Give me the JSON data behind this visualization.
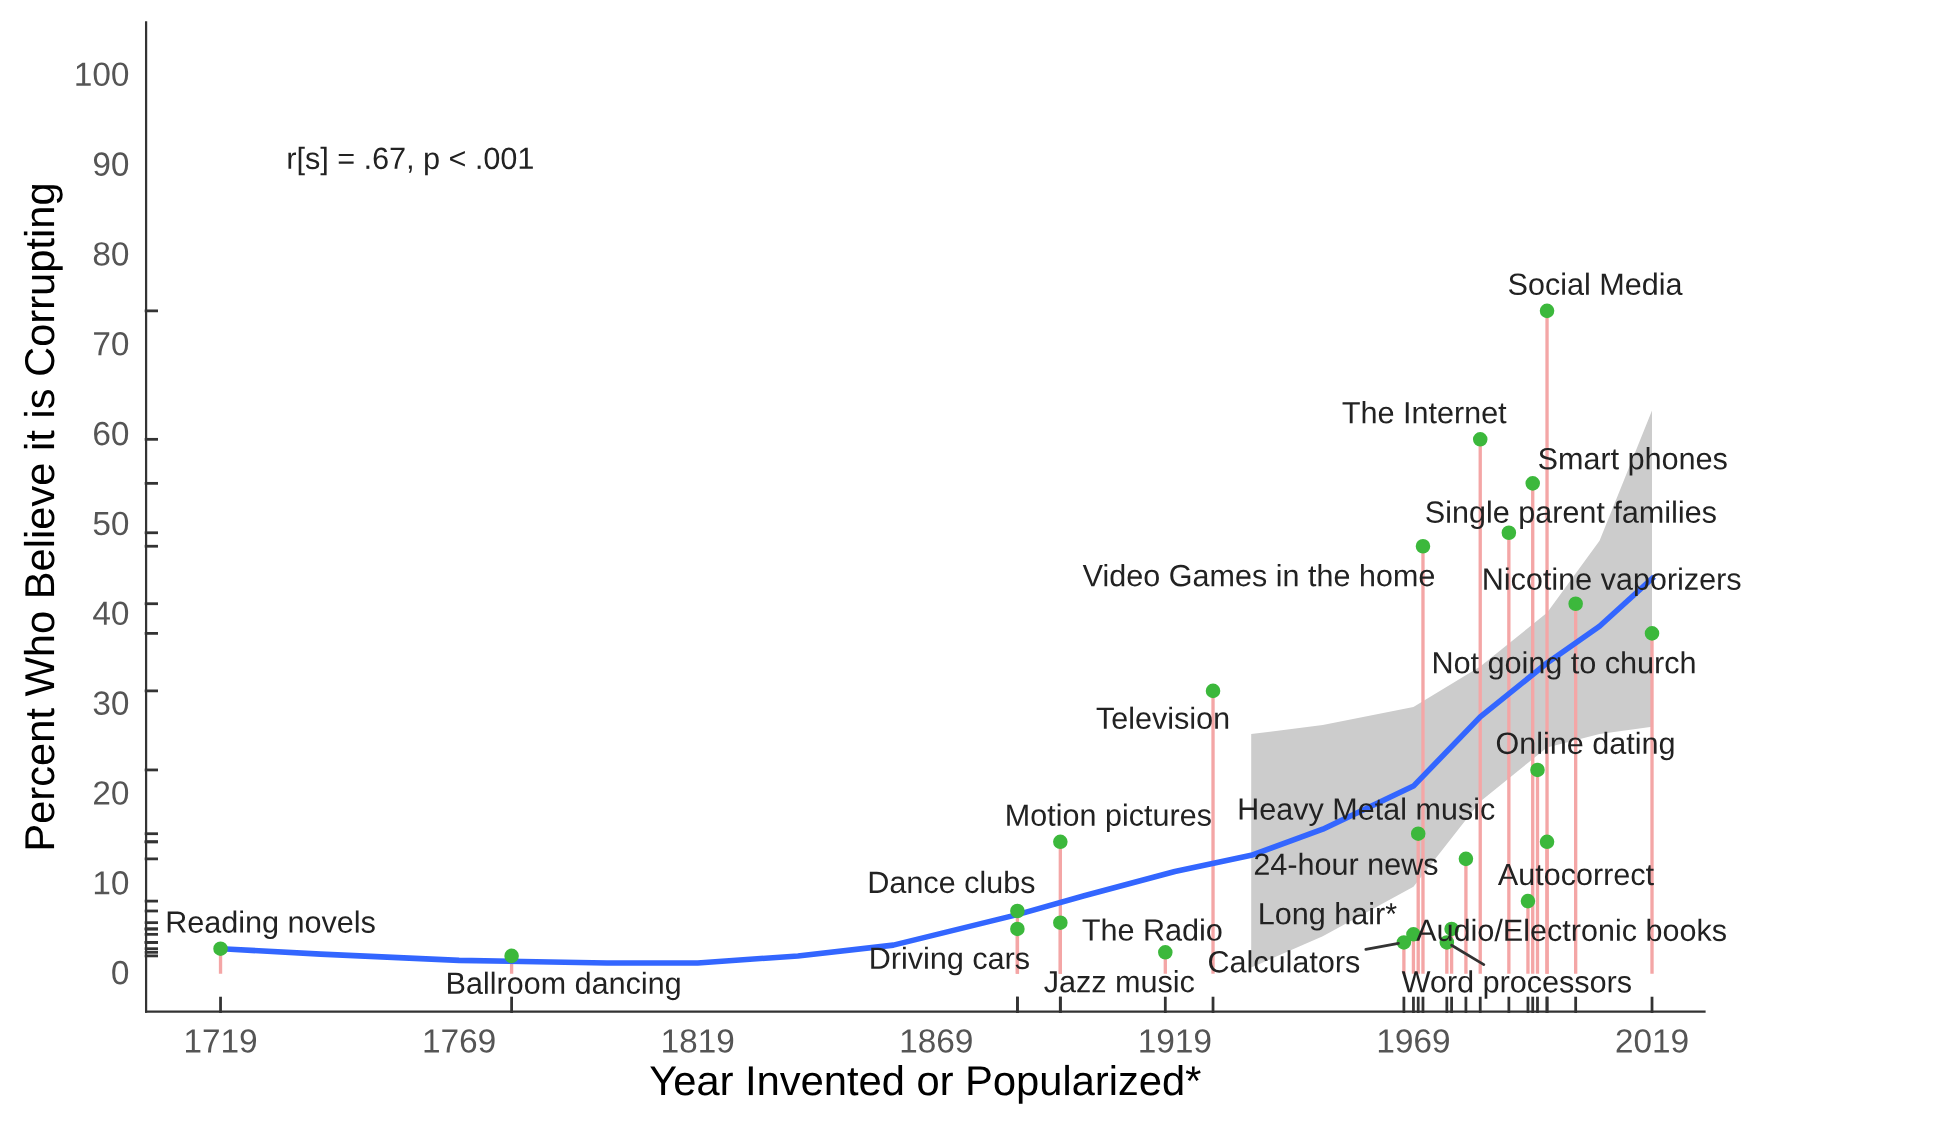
{
  "chart_data": {
    "type": "lollipop",
    "xlabel": "Year Invented or Popularized*",
    "ylabel": "Percent Who Believe it is Corrupting",
    "xlim": [
      1703.4,
      2030
    ],
    "ylim": [
      -4.4,
      105.7
    ],
    "xticks": [
      1719,
      1769,
      1819,
      1869,
      1919,
      1969,
      2019
    ],
    "yticks": [
      0,
      10,
      20,
      30,
      40,
      50,
      60,
      70,
      80,
      90,
      100
    ],
    "grid": false,
    "legend": false,
    "series": [
      {
        "marker": "circle",
        "color": "#3cb83c",
        "x": [
          1719,
          1780,
          1886,
          1886,
          1895,
          1895,
          1917,
          1927,
          1971,
          1970,
          1969,
          1967,
          1980,
          1977,
          1976,
          1983,
          1989,
          1994,
          1997,
          2003,
          2019,
          1995,
          1997,
          1993
        ],
        "values": [
          2.6,
          1.8,
          6.8,
          4.8,
          14.5,
          5.5,
          2.2,
          31.3,
          47.4,
          15.4,
          4.2,
          3.3,
          12.6,
          4.8,
          3.3,
          59.3,
          48.9,
          54.4,
          73.6,
          41.0,
          37.7,
          22.5,
          14.5,
          7.9
        ]
      },
      {
        "type": "line",
        "color": "#3366ff",
        "x": [
          1719,
          1740,
          1769,
          1800,
          1819,
          1840,
          1860,
          1886,
          1900,
          1919,
          1935,
          1950,
          1969,
          1983,
          1997,
          2008,
          2019
        ],
        "values": [
          2.6,
          2.0,
          1.3,
          1.0,
          1.0,
          1.8,
          3.0,
          6.4,
          8.5,
          11.2,
          13.0,
          15.9,
          20.7,
          28.4,
          34.4,
          38.5,
          43.8
        ],
        "lower": [
          null,
          null,
          null,
          null,
          null,
          null,
          null,
          null,
          null,
          null,
          0.5,
          4,
          9.5,
          19,
          25,
          26.5,
          27.3
        ],
        "upper": [
          null,
          null,
          null,
          null,
          null,
          null,
          null,
          null,
          null,
          null,
          26.5,
          27.5,
          29.5,
          34,
          40,
          48,
          62.5
        ]
      }
    ],
    "annotations": [
      "r[s] = .67, p < .001",
      {
        "text": "Reading novels",
        "x": 1719,
        "y": 2.6
      },
      {
        "text": "Ballroom dancing",
        "x": 1780,
        "y": 1.8
      },
      {
        "text": "Dance clubs",
        "x": 1886,
        "y": 6.8
      },
      {
        "text": "Driving cars",
        "x": 1886,
        "y": 4.8
      },
      {
        "text": "Motion pictures",
        "x": 1895,
        "y": 14.5
      },
      {
        "text": "The Radio",
        "x": 1895,
        "y": 5.5
      },
      {
        "text": "Jazz music",
        "x": 1917,
        "y": 2.2
      },
      {
        "text": "Television",
        "x": 1927,
        "y": 31.3
      },
      {
        "text": "Video Games in the home",
        "x": 1971,
        "y": 47.4
      },
      {
        "text": "Heavy Metal music",
        "x": 1970,
        "y": 15.4
      },
      {
        "text": "Long hair*",
        "x": 1969,
        "y": 4.2
      },
      {
        "text": "Calculators",
        "x": 1967,
        "y": 3.3
      },
      {
        "text": "24-hour news",
        "x": 1980,
        "y": 12.6
      },
      {
        "text": "Audio/Electronic books",
        "x": 1977,
        "y": 4.8
      },
      {
        "text": "Word processors",
        "x": 1976,
        "y": 3.3
      },
      {
        "text": "The Internet",
        "x": 1983,
        "y": 59.3
      },
      {
        "text": "Single parent families",
        "x": 1989,
        "y": 48.9
      },
      {
        "text": "Smart phones",
        "x": 1994,
        "y": 54.4
      },
      {
        "text": "Social Media",
        "x": 1997,
        "y": 73.6
      },
      {
        "text": "Nicotine vaporizers",
        "x": 2003,
        "y": 41.0
      },
      {
        "text": "Not going to church",
        "x": 2019,
        "y": 37.7
      },
      {
        "text": "Online dating",
        "x": 1995,
        "y": 22.5
      },
      {
        "text": "Autocorrect",
        "x": 1993,
        "y": 7.9
      }
    ]
  }
}
